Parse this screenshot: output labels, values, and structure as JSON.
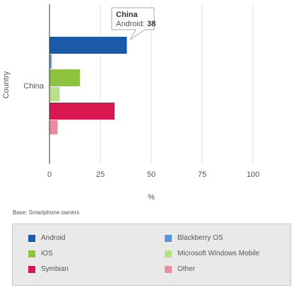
{
  "chart_data": {
    "type": "bar",
    "orientation": "horizontal",
    "categories": [
      "China"
    ],
    "series": [
      {
        "name": "Android",
        "values": [
          38
        ],
        "color": "#1a5aa8"
      },
      {
        "name": "Blackberry OS",
        "values": [
          1
        ],
        "color": "#5b94d6"
      },
      {
        "name": "iOS",
        "values": [
          15
        ],
        "color": "#8cc43f"
      },
      {
        "name": "Microsoft Windows Mobile",
        "values": [
          5
        ],
        "color": "#b8e08a"
      },
      {
        "name": "Symbian",
        "values": [
          32
        ],
        "color": "#d9174f"
      },
      {
        "name": "Other",
        "values": [
          4
        ],
        "color": "#ec8aa2"
      }
    ],
    "xlabel": "%",
    "ylabel": "Country",
    "xlim": [
      0,
      125
    ],
    "xticks": [
      0,
      25,
      50,
      75,
      100
    ],
    "grid": true,
    "legend": "bottom",
    "tooltip": {
      "title": "China",
      "series": "Android",
      "value": 38
    }
  },
  "notes": {
    "base": "Base: Smartphone owners"
  },
  "tooltip_label": "Android:"
}
